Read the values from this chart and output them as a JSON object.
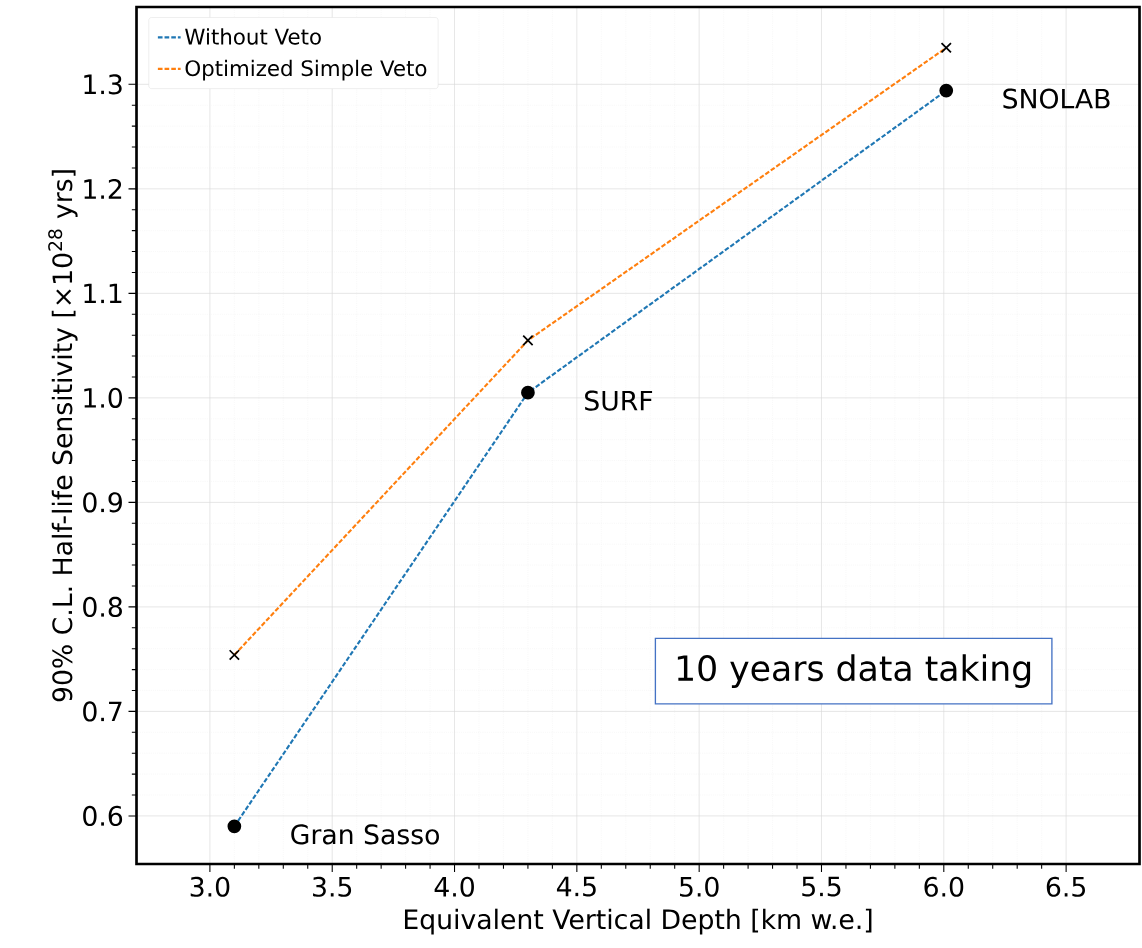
{
  "chart_data": {
    "type": "line",
    "xlabel": "Equivalent Vertical Depth [km w.e.]",
    "ylabel": "90% C.L. Half-life Sensitivity [×10$^{28}$ yrs]",
    "x": [
      3.1,
      4.3,
      6.01
    ],
    "series": [
      {
        "name": "Without Veto",
        "color": "#1f77b4",
        "values": [
          0.59,
          1.005,
          1.294
        ],
        "marker": "circle"
      },
      {
        "name": "Optimized Simple Veto",
        "color": "#ff7f0e",
        "values": [
          0.754,
          1.055,
          1.335
        ],
        "marker": "cross"
      }
    ],
    "xlim": [
      2.7,
      6.8
    ],
    "ylim": [
      0.554,
      1.374
    ],
    "xticks": [
      {
        "value": 3,
        "label": "3.0"
      },
      {
        "value": 3.5,
        "label": "3.5"
      },
      {
        "value": 4,
        "label": "4.0"
      },
      {
        "value": 4.5,
        "label": "4.5"
      },
      {
        "value": 5,
        "label": "5.0"
      },
      {
        "value": 5.5,
        "label": "5.5"
      },
      {
        "value": 6,
        "label": "6.0"
      },
      {
        "value": 6.5,
        "label": "6.5"
      }
    ],
    "yticks": [
      {
        "value": 0.6,
        "label": "0.6"
      },
      {
        "value": 0.7,
        "label": "0.7"
      },
      {
        "value": 0.8,
        "label": "0.8"
      },
      {
        "value": 0.9,
        "label": "0.9"
      },
      {
        "value": 1.0,
        "label": "1.0"
      },
      {
        "value": 1.1,
        "label": "1.1"
      },
      {
        "value": 1.2,
        "label": "1.2"
      },
      {
        "value": 1.3,
        "label": "1.3"
      }
    ],
    "annotations": [
      {
        "text": "Gran Sasso",
        "x": 3.1,
        "y": 0.59
      },
      {
        "text": "SURF",
        "x": 4.3,
        "y": 1.005
      },
      {
        "text": "SNOLAB",
        "x": 6.01,
        "y": 1.294
      },
      "10 years data taking"
    ],
    "grid": true,
    "legend": "top left",
    "line_style": "dashed"
  }
}
